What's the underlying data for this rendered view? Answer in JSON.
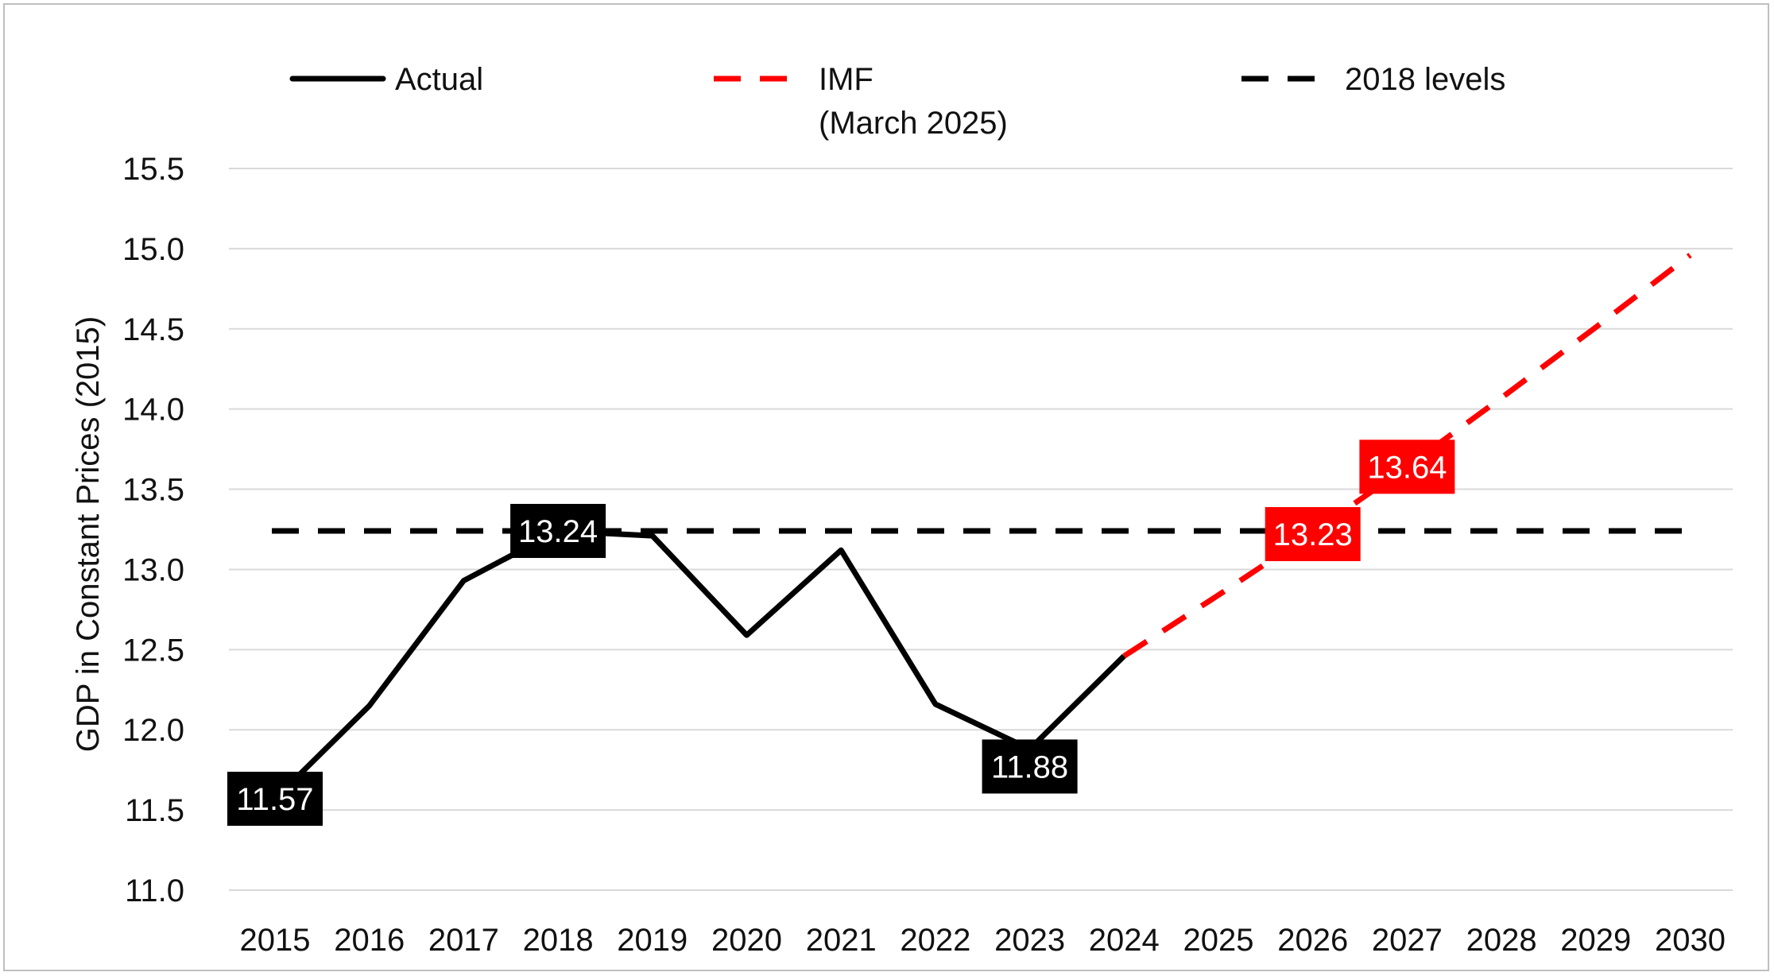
{
  "chart_data": {
    "type": "line",
    "title": "",
    "xlabel": "",
    "ylabel": "GDP in Constant Prices (2015)",
    "x": [
      "2015",
      "2016",
      "2017",
      "2018",
      "2019",
      "2020",
      "2021",
      "2022",
      "2023",
      "2024",
      "2025",
      "2026",
      "2027",
      "2028",
      "2029",
      "2030"
    ],
    "ylim": [
      11.0,
      15.5
    ],
    "yticks": [
      "11.0",
      "11.5",
      "12.0",
      "12.5",
      "13.0",
      "13.5",
      "14.0",
      "14.5",
      "15.0",
      "15.5"
    ],
    "grid": true,
    "legend_position": "top",
    "series": [
      {
        "name": "Actual",
        "color": "#000000",
        "style": "solid",
        "x": [
          "2015",
          "2016",
          "2017",
          "2018",
          "2019",
          "2020",
          "2021",
          "2022",
          "2023",
          "2024"
        ],
        "values": [
          11.57,
          12.15,
          12.93,
          13.24,
          13.21,
          12.59,
          13.12,
          12.16,
          11.88,
          12.46
        ]
      },
      {
        "name": "IMF\n(March 2025)",
        "color": "#ff0000",
        "style": "dashed",
        "x": [
          "2024",
          "2025",
          "2026",
          "2027",
          "2028",
          "2029",
          "2030"
        ],
        "values": [
          12.46,
          12.84,
          13.23,
          13.64,
          14.07,
          14.51,
          14.96
        ]
      },
      {
        "name": "2018 levels",
        "color": "#000000",
        "style": "dashed",
        "x": [
          "2015",
          "2030"
        ],
        "values": [
          13.24,
          13.24
        ]
      }
    ],
    "data_labels": [
      {
        "x": "2015",
        "value": 11.57,
        "text": "11.57",
        "color": "#000000"
      },
      {
        "x": "2018",
        "value": 13.24,
        "text": "13.24",
        "color": "#000000"
      },
      {
        "x": "2023",
        "value": 11.88,
        "text": "11.88",
        "color": "#000000"
      },
      {
        "x": "2026",
        "value": 13.23,
        "text": "13.23",
        "color": "#ff0000"
      },
      {
        "x": "2027",
        "value": 13.64,
        "text": "13.64",
        "color": "#ff0000"
      }
    ],
    "legend": {
      "actual": "Actual",
      "imf_line1": "IMF",
      "imf_line2": "(March 2025)",
      "levels": "2018 levels"
    }
  }
}
